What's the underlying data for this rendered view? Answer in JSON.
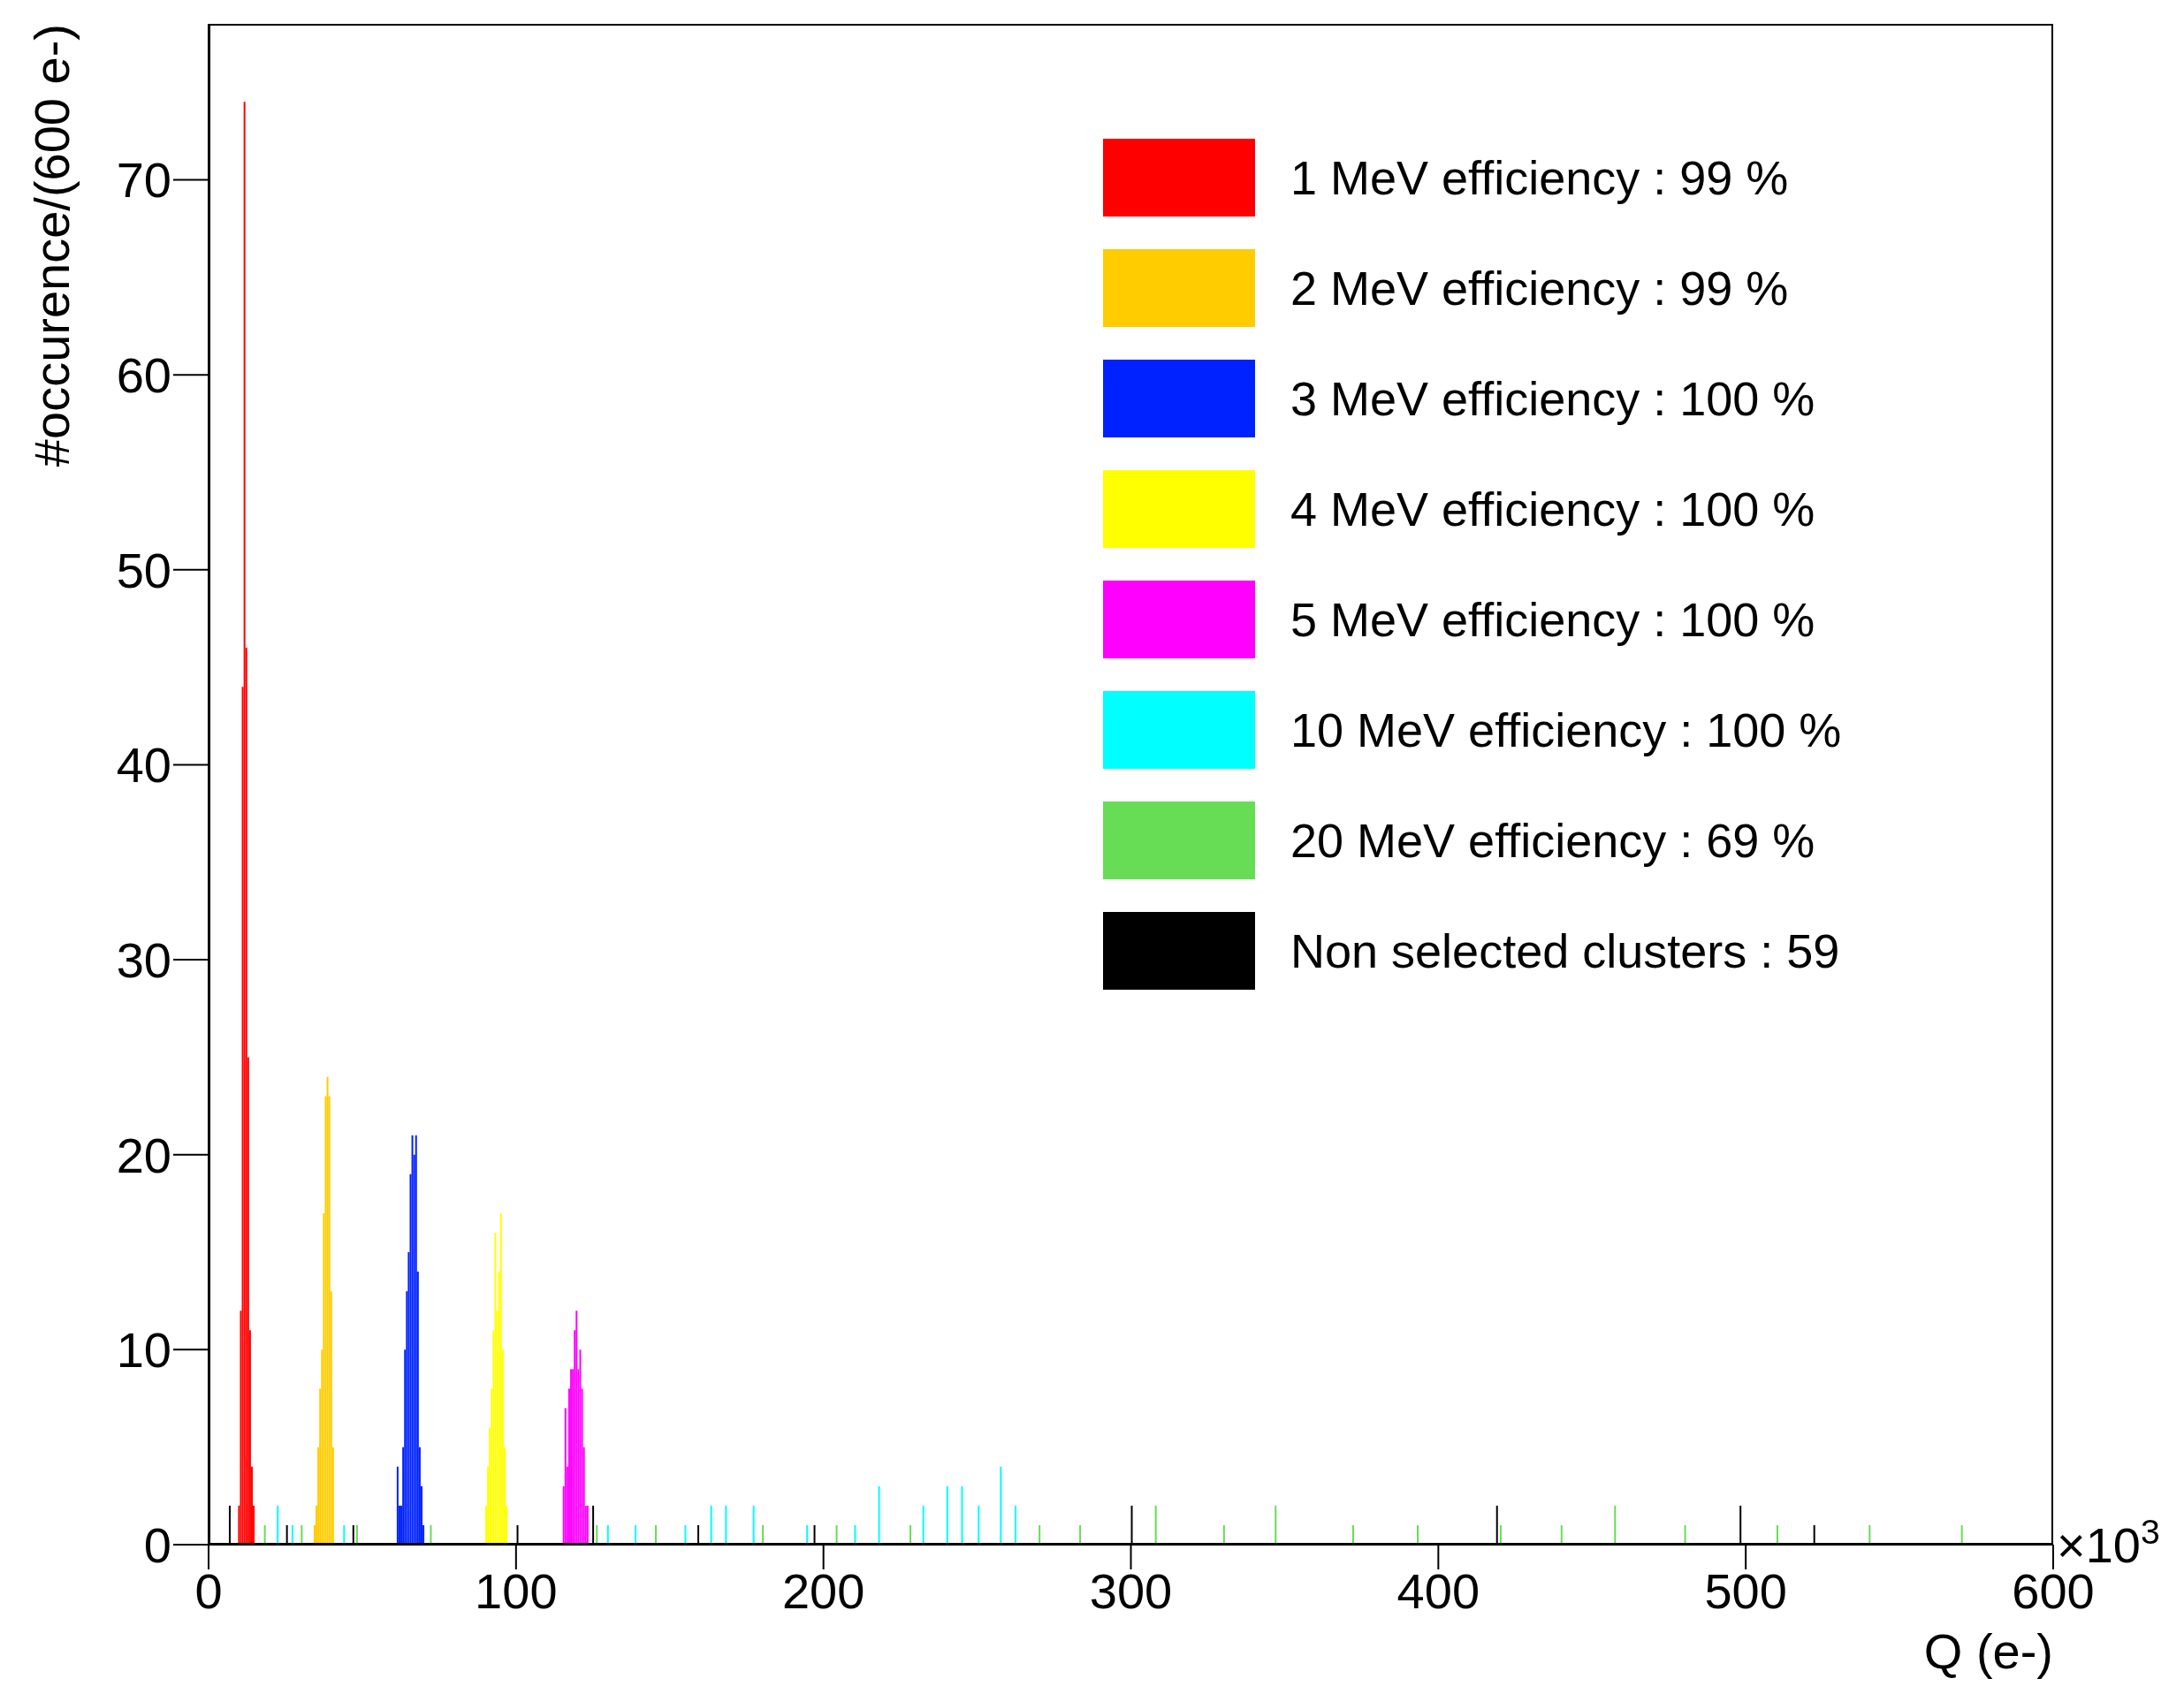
{
  "chart_data": {
    "type": "bar",
    "xlabel": "Q (e-)",
    "ylabel": "#occurence/(600 e-)",
    "xlim": [
      0,
      600
    ],
    "xticks": [
      0,
      100,
      200,
      300,
      400,
      500,
      600
    ],
    "ylim": [
      0,
      78
    ],
    "yticks": [
      0,
      10,
      20,
      30,
      40,
      50,
      60,
      70
    ],
    "legend": "top right",
    "annotations": [
      "×10$^{3}$"
    ],
    "series": [
      {
        "name": "1 MeV efficiency : 99 %",
        "color": "#ff0000",
        "x": [
          9.9,
          10.5,
          11.1,
          11.7,
          12.3,
          12.9,
          13.5,
          14.1,
          14.7
        ],
        "values": [
          2,
          12,
          44,
          74,
          46,
          25,
          11,
          4,
          2
        ]
      },
      {
        "name": "2 MeV efficiency : 99 %",
        "color": "#ffcc00",
        "x": [
          34.5,
          35.1,
          35.7,
          36.3,
          36.9,
          37.5,
          38.1,
          38.7,
          39.3,
          39.9,
          40.5
        ],
        "values": [
          1,
          2,
          5,
          8,
          10,
          17,
          23,
          24,
          23,
          13,
          5
        ]
      },
      {
        "name": "3 MeV efficiency : 100 %",
        "color": "#0022ff",
        "x": [
          61.5,
          62.1,
          62.7,
          63.3,
          63.9,
          64.5,
          65.1,
          65.7,
          66.3,
          66.9,
          67.5,
          68.1,
          68.7,
          69.3,
          69.9
        ],
        "values": [
          4,
          2,
          2,
          5,
          10,
          13,
          15,
          19,
          21,
          20,
          21,
          14,
          5,
          3,
          1
        ]
      },
      {
        "name": "4 MeV efficiency : 100 %",
        "color": "#ffff00",
        "x": [
          90.3,
          90.9,
          91.5,
          92.1,
          92.7,
          93.3,
          93.9,
          94.5,
          95.1,
          95.7,
          96.3,
          96.9
        ],
        "values": [
          2,
          4,
          6,
          8,
          11,
          16,
          12,
          14,
          17,
          10,
          5,
          2
        ]
      },
      {
        "name": "5 MeV efficiency : 100 %",
        "color": "#ff00ff",
        "x": [
          115.5,
          116.1,
          116.7,
          117.3,
          117.9,
          118.5,
          119.1,
          119.7,
          120.3,
          120.9,
          121.5,
          122.1,
          122.7,
          123.3
        ],
        "values": [
          3,
          7,
          4,
          8,
          9,
          9,
          11,
          12,
          9,
          10,
          8,
          5,
          2,
          2
        ]
      },
      {
        "name": "10 MeV efficiency : 100 %",
        "color": "#00ffff",
        "x": [
          22.5,
          27.3,
          44.1,
          129.9,
          138.9,
          155.1,
          163.5,
          168.3,
          177.3,
          194.7,
          210.3,
          218.1,
          232.5,
          240.3,
          245.1,
          250.5,
          257.7,
          262.5
        ],
        "values": [
          2,
          1,
          1,
          1,
          1,
          1,
          2,
          2,
          2,
          1,
          1,
          3,
          2,
          3,
          3,
          2,
          4,
          2
        ]
      },
      {
        "name": "20 MeV efficiency : 69 %",
        "color": "#66dd55",
        "x": [
          18.3,
          30.3,
          48.3,
          72.3,
          126.3,
          145.5,
          180.3,
          204.3,
          228.3,
          270.3,
          283.5,
          308.1,
          330.3,
          347.1,
          372.3,
          393.3,
          420.3,
          440.1,
          457.5,
          480.3,
          510.3,
          540.3,
          570.3
        ],
        "values": [
          1,
          1,
          1,
          1,
          1,
          1,
          1,
          1,
          1,
          1,
          1,
          2,
          1,
          2,
          1,
          1,
          1,
          1,
          2,
          1,
          1,
          1,
          1
        ]
      },
      {
        "name": "Non selected clusters : 59",
        "color": "#000000",
        "x": [
          6.9,
          25.5,
          47.1,
          100.5,
          125.1,
          159.3,
          197.1,
          300.3,
          419.1,
          498.3,
          522.3
        ],
        "values": [
          2,
          1,
          1,
          1,
          2,
          1,
          1,
          2,
          2,
          2,
          1
        ]
      }
    ]
  }
}
